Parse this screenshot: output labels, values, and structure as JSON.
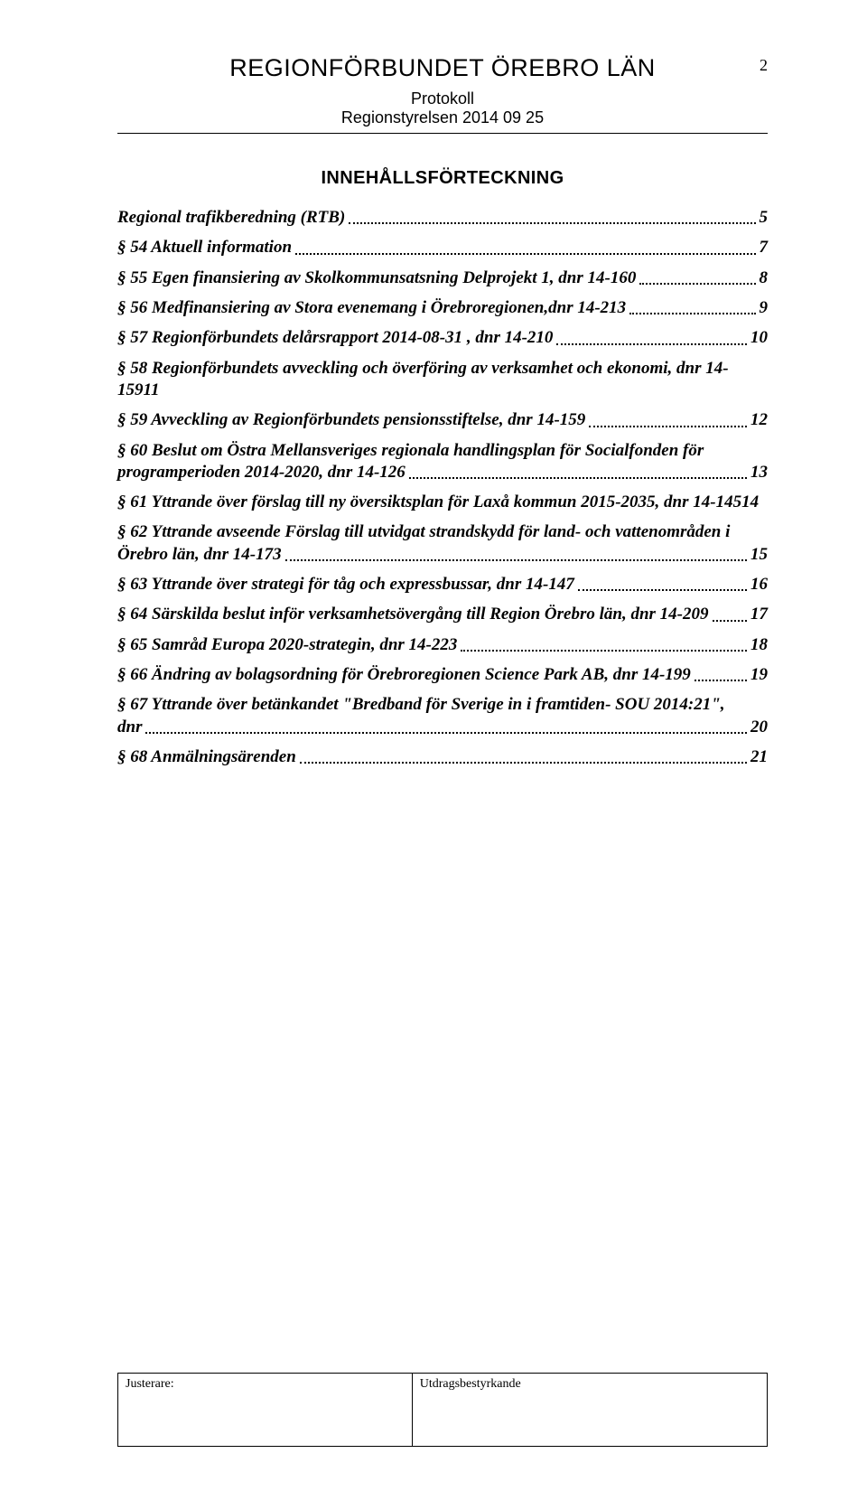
{
  "header": {
    "title": "REGIONFÖRBUNDET ÖREBRO LÄN",
    "page_number": "2",
    "sub1": "Protokoll",
    "sub2": "Regionstyrelsen 2014 09 25"
  },
  "toc_title": "INNEHÅLLSFÖRTECKNING",
  "toc": [
    {
      "text": "Regional trafikberedning (RTB)",
      "page": "5"
    },
    {
      "text": "§ 54 Aktuell information",
      "page": "7"
    },
    {
      "text": "§ 55 Egen finansiering av Skolkommunsatsning Delprojekt 1, dnr 14-160",
      "page": "8"
    },
    {
      "text": "§ 56 Medfinansiering av Stora evenemang i Örebroregionen,dnr 14-213",
      "page": "9"
    },
    {
      "text": "§ 57 Regionförbundets delårsrapport 2014-08-31 , dnr 14-210",
      "page": "10"
    },
    {
      "first": "§ 58 Regionförbundets avveckling och överföring av verksamhet och ekonomi, dnr 14-159",
      "text": "11",
      "page": "",
      "inline_page": "11",
      "type": "inline_page"
    },
    {
      "text": "§ 59 Avveckling av Regionförbundets pensionsstiftelse, dnr 14-159",
      "page": "12"
    },
    {
      "first": "§ 60 Beslut om Östra Mellansveriges regionala handlingsplan för Socialfonden för",
      "text": "programperioden 2014-2020, dnr 14-126",
      "page": "13"
    },
    {
      "text": "§ 61 Yttrande över förslag till ny översiktsplan för Laxå kommun 2015-2035, dnr 14-145",
      "page": "14",
      "nodots": true
    },
    {
      "first": "§ 62 Yttrande avseende Förslag till utvidgat strandskydd för land- och vattenområden i",
      "text": "Örebro län, dnr 14-173",
      "page": "15"
    },
    {
      "text": "§ 63 Yttrande över strategi för tåg och expressbussar, dnr 14-147",
      "page": "16"
    },
    {
      "text": "§ 64 Särskilda beslut inför verksamhetsövergång till Region Örebro län, dnr 14-209",
      "page": "17"
    },
    {
      "text": "§ 65 Samråd Europa 2020-strategin, dnr 14-223",
      "page": "18"
    },
    {
      "text": "§ 66 Ändring av bolagsordning för Örebroregionen Science Park AB, dnr 14-199",
      "page": "19"
    },
    {
      "first": "§ 67 Yttrande över betänkandet \"Bredband för Sverige in i framtiden- SOU 2014:21\",",
      "text": "dnr",
      "page": "20"
    },
    {
      "text": "§ 68 Anmälningsärenden",
      "page": "21"
    }
  ],
  "footer": {
    "left_label": "Justerare:",
    "right_label": "Utdragsbestyrkande"
  }
}
